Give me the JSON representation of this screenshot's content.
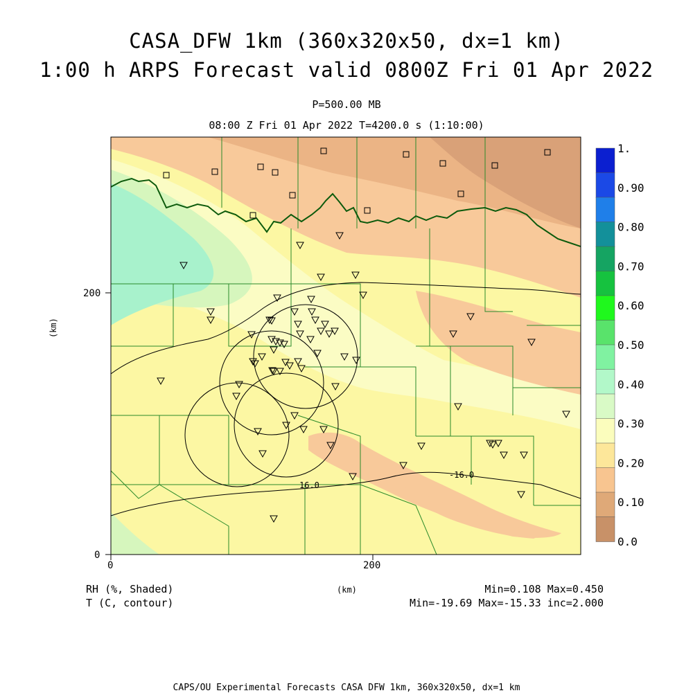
{
  "title": {
    "line1": "CASA_DFW 1km (360x320x50, dx=1 km)",
    "line2": "1:00 h ARPS Forecast valid 0800Z Fri 01 Apr 2022"
  },
  "subtitle": {
    "level": "P=500.00 MB",
    "time": "08:00 Z Fri 01 Apr 2022   T=4200.0 s (1:10:00)"
  },
  "axes": {
    "x_ticks": [
      "0",
      "200"
    ],
    "y_ticks": [
      "0",
      "200"
    ],
    "x_unit": "(km)",
    "y_unit": "(km)"
  },
  "colorbar": {
    "labels": [
      "1.",
      "0.90",
      "0.80",
      "0.70",
      "0.60",
      "0.50",
      "0.40",
      "0.30",
      "0.20",
      "0.10",
      "0.0"
    ],
    "colors": [
      "#0b1fd0",
      "#1b49e6",
      "#1f7fe9",
      "#13909a",
      "#15a462",
      "#16c23f",
      "#1ff81d",
      "#59e36b",
      "#80f2a1",
      "#b2f8c9",
      "#d9fac6",
      "#fbfdbd",
      "#fde79a",
      "#f8c590",
      "#dfa978",
      "#c89168"
    ]
  },
  "contours": {
    "label_a": "16.0",
    "label_b": "-16.0"
  },
  "footer": {
    "rh_label": "RH (%, Shaded)",
    "t_label": "T (C, contour)",
    "rh_minmax": "Min=0.108 Max=0.450",
    "t_minmax": "Min=-19.69 Max=-15.33 inc=2.000",
    "credit": "CAPS/OU Experimental Forecasts  CASA DFW 1km, 360x320x50, dx=1 km"
  },
  "fill_colors": {
    "cyan": "#a8f2cc",
    "light_green": "#d6f6bd",
    "pale_yellow": "#fbfcc4",
    "yellow": "#fcf7a3",
    "light_orange": "#f8c99a",
    "orange": "#ebb485",
    "brown": "#d9a178"
  }
}
